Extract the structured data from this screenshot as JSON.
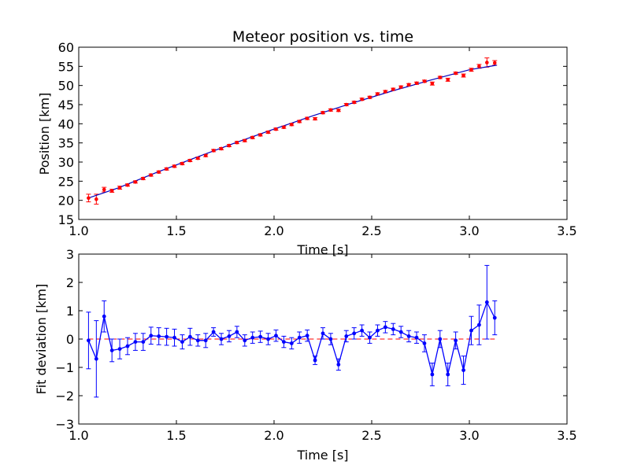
{
  "chart_data": [
    {
      "type": "scatter",
      "title": "Meteor position vs. time",
      "xlabel": "Time [s]",
      "ylabel": "Position [km]",
      "xlim": [
        1.0,
        3.5
      ],
      "ylim": [
        15,
        60
      ],
      "xticks": [
        "1.0",
        "1.5",
        "2.0",
        "2.5",
        "3.0",
        "3.5"
      ],
      "yticks": [
        "15",
        "20",
        "25",
        "30",
        "35",
        "40",
        "45",
        "50",
        "55",
        "60"
      ],
      "colors": {
        "measured": "#ff0000",
        "fit": "#0000bf"
      },
      "series": [
        {
          "kind": "errorbar-points",
          "x": [
            1.05,
            1.09,
            1.13,
            1.17,
            1.21,
            1.25,
            1.29,
            1.33,
            1.37,
            1.41,
            1.45,
            1.49,
            1.53,
            1.57,
            1.61,
            1.65,
            1.69,
            1.73,
            1.77,
            1.81,
            1.85,
            1.89,
            1.93,
            1.97,
            2.01,
            2.05,
            2.09,
            2.13,
            2.17,
            2.21,
            2.25,
            2.29,
            2.33,
            2.37,
            2.41,
            2.45,
            2.49,
            2.53,
            2.57,
            2.61,
            2.65,
            2.69,
            2.73,
            2.77,
            2.81,
            2.85,
            2.89,
            2.93,
            2.97,
            3.01,
            3.05,
            3.09,
            3.13
          ],
          "y": [
            20.6,
            20.3,
            22.8,
            22.5,
            23.3,
            24.0,
            24.8,
            25.7,
            26.6,
            27.4,
            28.2,
            28.9,
            29.6,
            30.4,
            31.0,
            31.7,
            33.0,
            33.5,
            34.3,
            35.1,
            35.6,
            36.4,
            37.1,
            37.8,
            38.6,
            39.1,
            39.8,
            40.6,
            41.4,
            41.3,
            42.9,
            43.6,
            43.5,
            45.0,
            45.6,
            46.4,
            46.9,
            47.8,
            48.4,
            49.0,
            49.6,
            50.2,
            50.6,
            51.1,
            50.5,
            52.1,
            51.5,
            53.2,
            52.6,
            54.1,
            55.0,
            56.0,
            55.9
          ],
          "err": [
            1.0,
            1.3,
            0.6,
            0.4,
            0.4,
            0.3,
            0.3,
            0.3,
            0.3,
            0.3,
            0.3,
            0.3,
            0.3,
            0.3,
            0.3,
            0.3,
            0.3,
            0.3,
            0.3,
            0.3,
            0.3,
            0.3,
            0.3,
            0.3,
            0.3,
            0.3,
            0.3,
            0.3,
            0.3,
            0.3,
            0.3,
            0.3,
            0.3,
            0.3,
            0.3,
            0.3,
            0.3,
            0.3,
            0.3,
            0.3,
            0.3,
            0.3,
            0.3,
            0.3,
            0.4,
            0.3,
            0.4,
            0.3,
            0.4,
            0.4,
            0.5,
            1.2,
            0.6
          ]
        },
        {
          "kind": "line",
          "x": [
            1.05,
            1.2,
            1.4,
            1.6,
            1.8,
            2.0,
            2.2,
            2.4,
            2.6,
            2.8,
            3.0,
            3.14
          ],
          "y": [
            20.6,
            23.2,
            27.3,
            31.2,
            35.0,
            38.6,
            42.1,
            45.4,
            48.5,
            51.4,
            54.1,
            55.3
          ]
        }
      ]
    },
    {
      "type": "line",
      "title": "",
      "xlabel": "Time [s]",
      "ylabel": "Fit deviation [km]",
      "xlim": [
        1.0,
        3.5
      ],
      "ylim": [
        -3,
        3
      ],
      "xticks": [
        "1.0",
        "1.5",
        "2.0",
        "2.5",
        "3.0",
        "3.5"
      ],
      "yticks": [
        "−3",
        "−2",
        "−1",
        "0",
        "1",
        "2",
        "3"
      ],
      "colors": {
        "deviation": "#0000ff",
        "zero_line": "#ff0000"
      },
      "zero_line": 0,
      "series": [
        {
          "kind": "errorbar-line",
          "x": [
            1.05,
            1.09,
            1.13,
            1.17,
            1.21,
            1.25,
            1.29,
            1.33,
            1.37,
            1.41,
            1.45,
            1.49,
            1.53,
            1.57,
            1.61,
            1.65,
            1.69,
            1.73,
            1.77,
            1.81,
            1.85,
            1.89,
            1.93,
            1.97,
            2.01,
            2.05,
            2.09,
            2.13,
            2.17,
            2.21,
            2.25,
            2.29,
            2.33,
            2.37,
            2.41,
            2.45,
            2.49,
            2.53,
            2.57,
            2.61,
            2.65,
            2.69,
            2.73,
            2.77,
            2.81,
            2.85,
            2.89,
            2.93,
            2.97,
            3.01,
            3.05,
            3.09,
            3.13
          ],
          "y": [
            -0.05,
            -0.7,
            0.8,
            -0.4,
            -0.35,
            -0.25,
            -0.1,
            -0.1,
            0.12,
            0.1,
            0.08,
            0.05,
            -0.1,
            0.08,
            -0.05,
            -0.05,
            0.25,
            0.0,
            0.1,
            0.25,
            -0.05,
            0.05,
            0.08,
            0.0,
            0.12,
            -0.1,
            -0.15,
            0.05,
            0.12,
            -0.75,
            0.2,
            0.0,
            -0.9,
            0.1,
            0.2,
            0.3,
            0.05,
            0.3,
            0.42,
            0.35,
            0.25,
            0.1,
            0.05,
            -0.15,
            -1.25,
            0.0,
            -1.25,
            -0.05,
            -1.1,
            0.3,
            0.5,
            1.3,
            0.75
          ],
          "err": [
            1.0,
            1.35,
            0.55,
            0.4,
            0.35,
            0.3,
            0.3,
            0.3,
            0.3,
            0.3,
            0.3,
            0.3,
            0.25,
            0.3,
            0.2,
            0.25,
            0.15,
            0.2,
            0.2,
            0.2,
            0.2,
            0.2,
            0.2,
            0.2,
            0.2,
            0.2,
            0.2,
            0.2,
            0.2,
            0.15,
            0.2,
            0.2,
            0.2,
            0.2,
            0.2,
            0.2,
            0.2,
            0.2,
            0.2,
            0.2,
            0.2,
            0.2,
            0.2,
            0.3,
            0.4,
            0.3,
            0.4,
            0.3,
            0.5,
            0.5,
            0.7,
            1.3,
            0.6
          ]
        }
      ]
    }
  ]
}
